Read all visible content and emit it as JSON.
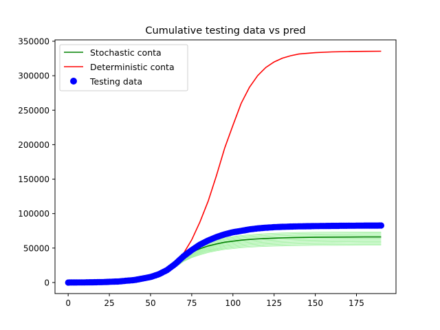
{
  "chart_data": {
    "type": "line",
    "title": "Cumulative testing data vs pred",
    "xlabel": "",
    "ylabel": "",
    "xlim": [
      -8,
      199
    ],
    "ylim": [
      -16000,
      352000
    ],
    "xticks": [
      0,
      25,
      50,
      75,
      100,
      125,
      150,
      175
    ],
    "yticks": [
      0,
      50000,
      100000,
      150000,
      200000,
      250000,
      300000,
      350000
    ],
    "grid": false,
    "legend_position": "top-left",
    "colors": {
      "stochastic": "#008000",
      "stochastic_samples": "#90ee90",
      "deterministic": "#ff0000",
      "testing": "#0000ff"
    },
    "x": [
      0,
      10,
      20,
      30,
      40,
      50,
      55,
      60,
      65,
      70,
      75,
      80,
      85,
      90,
      95,
      100,
      105,
      110,
      115,
      120,
      125,
      130,
      135,
      140,
      150,
      160,
      170,
      180,
      190
    ],
    "series": [
      {
        "name": "Stochastic conta",
        "kind": "line",
        "values": [
          0,
          200,
          600,
          1500,
          3500,
          8000,
          12000,
          18000,
          27000,
          37000,
          44000,
          49000,
          53000,
          56000,
          58500,
          60000,
          61500,
          62500,
          63300,
          63900,
          64400,
          64800,
          65100,
          65400,
          65700,
          65900,
          66000,
          66100,
          66100
        ]
      },
      {
        "name": "Deterministic conta",
        "kind": "line",
        "values": [
          0,
          200,
          600,
          1500,
          3500,
          8000,
          12500,
          19000,
          28000,
          42000,
          62000,
          88000,
          118000,
          155000,
          195000,
          228000,
          260000,
          283000,
          300000,
          312000,
          320000,
          325500,
          329000,
          331500,
          333500,
          334500,
          335000,
          335300,
          335500
        ]
      },
      {
        "name": "Testing data",
        "kind": "scatter",
        "values": [
          0,
          200,
          600,
          1500,
          3500,
          8000,
          12000,
          18000,
          27000,
          38000,
          47000,
          55000,
          61000,
          66000,
          70000,
          73000,
          75000,
          77000,
          78500,
          79500,
          80300,
          80800,
          81200,
          81500,
          81900,
          82200,
          82400,
          82600,
          82700
        ]
      }
    ]
  }
}
